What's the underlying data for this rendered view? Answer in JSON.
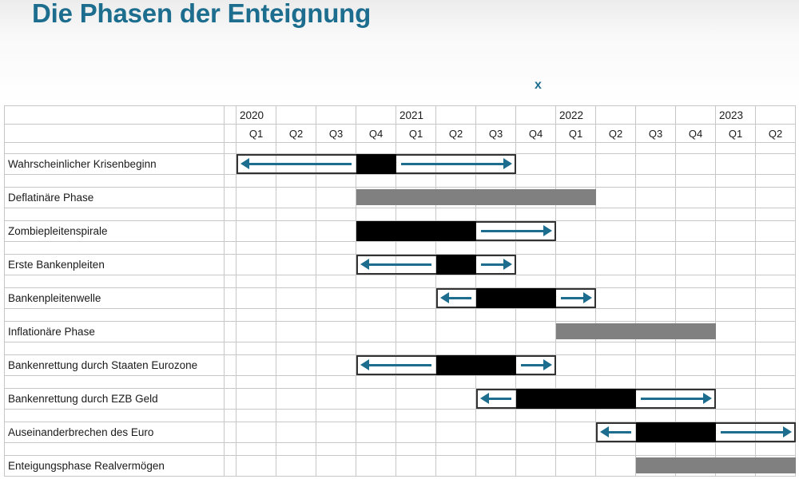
{
  "title": "Die Phasen der Enteignung",
  "marker_x": "x",
  "colors": {
    "accent": "#1c6d8e",
    "bar_black": "#000000",
    "bar_gray": "#808080",
    "grid_line": "#c7c7c7",
    "box_border": "#333333",
    "text": "#1a1a1a"
  },
  "chart_data": {
    "type": "gantt",
    "title": "Die Phasen der Enteignung",
    "years": [
      "2020",
      "2021",
      "2022",
      "2023"
    ],
    "quarter_labels": [
      "Q1",
      "Q2",
      "Q3",
      "Q4",
      "Q1",
      "Q2",
      "Q3",
      "Q4",
      "Q1",
      "Q2",
      "Q3",
      "Q4",
      "Q1",
      "Q2"
    ],
    "quarter_axis": [
      "2020-Q1",
      "2020-Q2",
      "2020-Q3",
      "2020-Q4",
      "2021-Q1",
      "2021-Q2",
      "2021-Q3",
      "2021-Q4",
      "2022-Q1",
      "2022-Q2",
      "2022-Q3",
      "2022-Q4",
      "2023-Q1",
      "2023-Q2"
    ],
    "marker": {
      "label": "x",
      "above_quarter": "2021-Q4"
    },
    "rows": [
      {
        "label": "Wahrscheinlicher Krisenbeginn",
        "box": [
          0,
          6
        ],
        "black": [
          3,
          3
        ],
        "arrows": [
          {
            "dir": "left",
            "range": [
              0,
              2
            ]
          },
          {
            "dir": "right",
            "range": [
              4,
              6
            ]
          }
        ]
      },
      {
        "label": "Deflatinäre Phase",
        "gray": [
          3,
          8
        ]
      },
      {
        "label": "Zombiepleitenspirale",
        "box": [
          3,
          7
        ],
        "black": [
          3,
          5
        ],
        "arrows": [
          {
            "dir": "right",
            "range": [
              6,
              7
            ]
          }
        ]
      },
      {
        "label": "Erste Bankenpleiten",
        "box": [
          3,
          6
        ],
        "black": [
          5,
          5
        ],
        "arrows": [
          {
            "dir": "left",
            "range": [
              3,
              4
            ]
          },
          {
            "dir": "right",
            "range": [
              6,
              6
            ]
          }
        ]
      },
      {
        "label": "Bankenpleitenwelle",
        "box": [
          5,
          8
        ],
        "black": [
          6,
          7
        ],
        "arrows": [
          {
            "dir": "left",
            "range": [
              5,
              5
            ]
          },
          {
            "dir": "right",
            "range": [
              8,
              8
            ]
          }
        ]
      },
      {
        "label": "Inflationäre Phase",
        "gray": [
          8,
          11
        ]
      },
      {
        "label": "Bankenrettung durch Staaten Eurozone",
        "box": [
          3,
          7
        ],
        "black": [
          5,
          6
        ],
        "arrows": [
          {
            "dir": "left",
            "range": [
              3,
              4
            ]
          },
          {
            "dir": "right",
            "range": [
              7,
              7
            ]
          }
        ]
      },
      {
        "label": "Bankenrettung durch EZB Geld",
        "box": [
          6,
          11
        ],
        "black": [
          7,
          9
        ],
        "arrows": [
          {
            "dir": "left",
            "range": [
              6,
              6
            ]
          },
          {
            "dir": "right",
            "range": [
              10,
              11
            ]
          }
        ]
      },
      {
        "label": "Auseinanderbrechen des Euro",
        "box": [
          9,
          13
        ],
        "black": [
          10,
          11
        ],
        "arrows": [
          {
            "dir": "left",
            "range": [
              9,
              9
            ]
          },
          {
            "dir": "right",
            "range": [
              12,
              13
            ]
          }
        ]
      },
      {
        "label": "Enteigungsphase Realvermögen",
        "gray": [
          10,
          13
        ]
      }
    ]
  }
}
